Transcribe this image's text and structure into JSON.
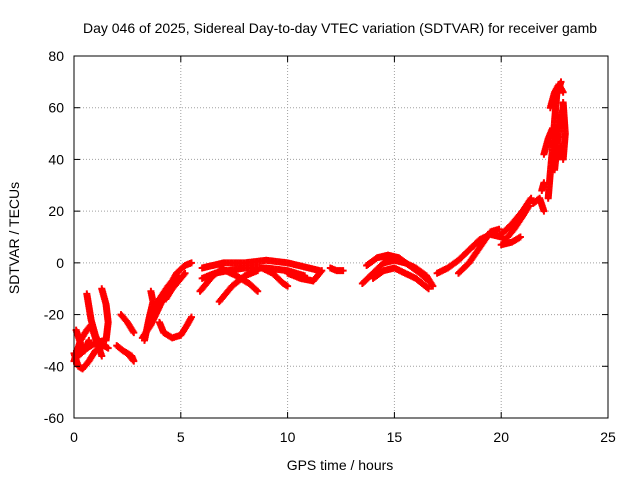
{
  "chart_data": {
    "type": "scatter",
    "title": "Day 046 of 2025, Sidereal Day-to-day VTEC variation (SDTVAR) for receiver gamb",
    "xlabel": "GPS time / hours",
    "ylabel": "SDTVAR / TECUs",
    "xlim": [
      0,
      25
    ],
    "ylim": [
      -60,
      80
    ],
    "xticks": [
      0,
      5,
      10,
      15,
      20,
      25
    ],
    "yticks": [
      -60,
      -40,
      -20,
      0,
      20,
      40,
      60,
      80
    ],
    "grid": true,
    "marker": "plus",
    "series": [
      {
        "name": "SDTVAR",
        "color": "#ff0000",
        "segments": [
          [
            [
              0.0,
              -35
            ],
            [
              0.2,
              -40
            ],
            [
              0.4,
              -41
            ],
            [
              0.7,
              -38
            ],
            [
              1.0,
              -34
            ],
            [
              1.4,
              -32
            ],
            [
              1.6,
              -33
            ]
          ],
          [
            [
              0.0,
              -38
            ],
            [
              0.3,
              -30
            ],
            [
              0.6,
              -26
            ],
            [
              0.8,
              -24
            ],
            [
              1.0,
              -29
            ],
            [
              1.3,
              -36
            ]
          ],
          [
            [
              0.1,
              -26
            ],
            [
              0.3,
              -31
            ],
            [
              0.5,
              -34
            ],
            [
              0.7,
              -30
            ]
          ],
          [
            [
              0.6,
              -12
            ],
            [
              0.8,
              -22
            ],
            [
              1.0,
              -28
            ],
            [
              1.2,
              -32
            ]
          ],
          [
            [
              1.3,
              -10
            ],
            [
              1.5,
              -16
            ],
            [
              1.6,
              -23
            ],
            [
              1.5,
              -30
            ]
          ],
          [
            [
              0.2,
              -36
            ],
            [
              0.6,
              -33
            ],
            [
              1.0,
              -31
            ],
            [
              1.4,
              -30
            ]
          ],
          [
            [
              2.2,
              -20
            ],
            [
              2.5,
              -23
            ],
            [
              2.8,
              -27
            ]
          ],
          [
            [
              2.0,
              -32
            ],
            [
              2.3,
              -34
            ],
            [
              2.7,
              -36
            ],
            [
              2.8,
              -38
            ],
            [
              2.5,
              -35
            ]
          ],
          [
            [
              3.2,
              -29
            ],
            [
              3.6,
              -24
            ],
            [
              4.0,
              -17
            ],
            [
              4.4,
              -10
            ],
            [
              4.8,
              -4
            ],
            [
              5.2,
              -1
            ],
            [
              5.5,
              0
            ]
          ],
          [
            [
              3.3,
              -30
            ],
            [
              3.5,
              -22
            ],
            [
              3.7,
              -15
            ],
            [
              3.6,
              -11
            ]
          ],
          [
            [
              3.6,
              -22
            ],
            [
              4.0,
              -14
            ],
            [
              4.4,
              -9
            ],
            [
              4.8,
              -5
            ]
          ],
          [
            [
              4.0,
              -23
            ],
            [
              4.2,
              -27
            ],
            [
              4.6,
              -29
            ],
            [
              5.0,
              -28
            ],
            [
              5.3,
              -24
            ],
            [
              5.5,
              -21
            ]
          ],
          [
            [
              4.3,
              -14
            ],
            [
              4.6,
              -10
            ],
            [
              5.0,
              -6
            ],
            [
              5.2,
              -4
            ]
          ],
          [
            [
              6.0,
              -2
            ],
            [
              6.5,
              -1
            ],
            [
              7.0,
              0
            ],
            [
              8.0,
              0
            ],
            [
              9.0,
              1
            ],
            [
              10.0,
              0
            ],
            [
              11.0,
              -2
            ],
            [
              11.5,
              -3
            ]
          ],
          [
            [
              6.0,
              -6
            ],
            [
              6.6,
              -4
            ],
            [
              7.2,
              -3
            ],
            [
              8.0,
              -2
            ],
            [
              9.0,
              -2
            ],
            [
              10.0,
              -3
            ],
            [
              10.8,
              -5
            ]
          ],
          [
            [
              5.9,
              -11
            ],
            [
              6.2,
              -8
            ],
            [
              6.5,
              -5
            ],
            [
              7.0,
              -2
            ]
          ],
          [
            [
              6.8,
              -15
            ],
            [
              7.4,
              -9
            ],
            [
              8.0,
              -5
            ],
            [
              8.6,
              -3
            ]
          ],
          [
            [
              7.1,
              -3
            ],
            [
              7.6,
              -5
            ],
            [
              8.2,
              -8
            ],
            [
              8.6,
              -11
            ]
          ],
          [
            [
              8.8,
              -2
            ],
            [
              9.3,
              -4
            ],
            [
              9.8,
              -8
            ],
            [
              10.0,
              -9
            ]
          ],
          [
            [
              10.0,
              -4
            ],
            [
              10.6,
              -6
            ],
            [
              11.2,
              -7
            ],
            [
              11.6,
              -3
            ]
          ],
          [
            [
              12.0,
              -2
            ],
            [
              12.3,
              -3
            ],
            [
              12.6,
              -3
            ]
          ],
          [
            [
              13.5,
              -8
            ],
            [
              14.0,
              -4
            ],
            [
              14.5,
              0
            ],
            [
              15.0,
              1
            ],
            [
              15.5,
              0
            ],
            [
              16.0,
              -2
            ],
            [
              16.5,
              -5
            ],
            [
              16.8,
              -9
            ]
          ],
          [
            [
              13.7,
              -1
            ],
            [
              14.2,
              2
            ],
            [
              14.7,
              3
            ],
            [
              15.2,
              2
            ],
            [
              15.7,
              -1
            ],
            [
              16.2,
              -4
            ],
            [
              16.6,
              -7
            ]
          ],
          [
            [
              14.0,
              -6
            ],
            [
              14.5,
              -3
            ],
            [
              15.0,
              -2
            ],
            [
              15.5,
              -4
            ],
            [
              16.0,
              -6
            ],
            [
              16.6,
              -10
            ]
          ],
          [
            [
              17.0,
              -4
            ],
            [
              17.5,
              -2
            ],
            [
              18.0,
              1
            ],
            [
              18.5,
              5
            ],
            [
              19.0,
              9
            ],
            [
              19.5,
              11
            ],
            [
              20.0,
              10
            ],
            [
              20.3,
              8
            ]
          ],
          [
            [
              18.0,
              -4
            ],
            [
              18.5,
              0
            ],
            [
              19.0,
              6
            ],
            [
              19.5,
              12
            ],
            [
              19.9,
              13
            ]
          ],
          [
            [
              20.3,
              10
            ],
            [
              20.6,
              13
            ],
            [
              21.0,
              18
            ],
            [
              21.3,
              22
            ]
          ],
          [
            [
              20.0,
              11
            ],
            [
              20.5,
              15
            ],
            [
              21.0,
              20
            ],
            [
              21.4,
              25
            ]
          ],
          [
            [
              20.0,
              7
            ],
            [
              20.5,
              8
            ],
            [
              20.9,
              10
            ]
          ],
          [
            [
              21.5,
              23
            ],
            [
              21.8,
              25
            ],
            [
              22.0,
              20
            ]
          ],
          [
            [
              21.9,
              28
            ],
            [
              22.0,
              31
            ]
          ],
          [
            [
              22.0,
              42
            ],
            [
              22.2,
              48
            ],
            [
              22.4,
              52
            ]
          ],
          [
            [
              22.2,
              25
            ],
            [
              22.3,
              35
            ],
            [
              22.4,
              44
            ],
            [
              22.5,
              55
            ],
            [
              22.6,
              65
            ],
            [
              22.8,
              70
            ]
          ],
          [
            [
              22.3,
              60
            ],
            [
              22.5,
              66
            ],
            [
              22.7,
              69
            ],
            [
              22.9,
              66
            ]
          ],
          [
            [
              22.5,
              36
            ],
            [
              22.6,
              44
            ],
            [
              22.7,
              52
            ],
            [
              22.9,
              60
            ]
          ],
          [
            [
              22.4,
              42
            ],
            [
              22.6,
              40
            ],
            [
              22.8,
              45
            ]
          ],
          [
            [
              22.9,
              40
            ],
            [
              23.0,
              50
            ],
            [
              22.9,
              62
            ]
          ]
        ]
      }
    ]
  }
}
